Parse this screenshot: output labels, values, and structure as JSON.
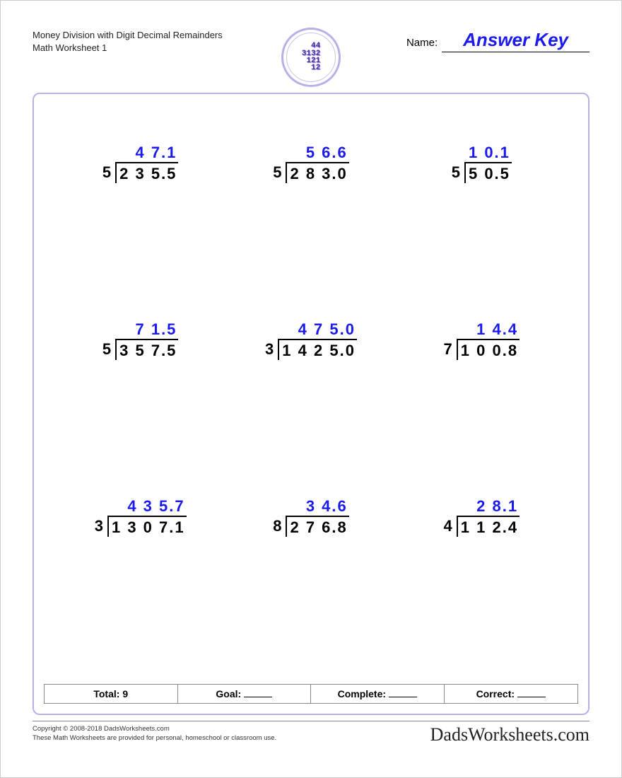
{
  "header": {
    "title_line1": "Money Division with Digit Decimal Remainders",
    "title_line2": "Math Worksheet 1",
    "name_label": "Name:",
    "answer_key": "Answer Key"
  },
  "logo": {
    "text": "44\n3132\n121\n12"
  },
  "colors": {
    "accent_border": "#b9b0e8",
    "answer_blue": "#1a1af0",
    "text": "#000000",
    "logo_purple": "#4a2fa8"
  },
  "problems": [
    {
      "divisor": "5",
      "dividend": "2 3 5.5",
      "quotient": "4 7.1"
    },
    {
      "divisor": "5",
      "dividend": "2 8 3.0",
      "quotient": "5 6.6"
    },
    {
      "divisor": "5",
      "dividend": "5 0.5",
      "quotient": "1 0.1"
    },
    {
      "divisor": "5",
      "dividend": "3 5 7.5",
      "quotient": "7 1.5"
    },
    {
      "divisor": "3",
      "dividend": "1 4 2 5.0",
      "quotient": "4 7 5.0"
    },
    {
      "divisor": "7",
      "dividend": "1 0 0.8",
      "quotient": "1 4.4"
    },
    {
      "divisor": "3",
      "dividend": "1 3 0 7.1",
      "quotient": "4 3 5.7"
    },
    {
      "divisor": "8",
      "dividend": "2 7 6.8",
      "quotient": "3 4.6"
    },
    {
      "divisor": "4",
      "dividend": "1 1 2.4",
      "quotient": "2 8.1"
    }
  ],
  "summary": {
    "total_label": "Total:",
    "total_value": "9",
    "goal_label": "Goal:",
    "complete_label": "Complete:",
    "correct_label": "Correct:"
  },
  "footer": {
    "copyright": "Copyright © 2008-2018 DadsWorksheets.com",
    "disclaimer": "These Math Worksheets are provided for personal, homeschool or classroom use.",
    "brand": "DadsWorksheets.com"
  }
}
